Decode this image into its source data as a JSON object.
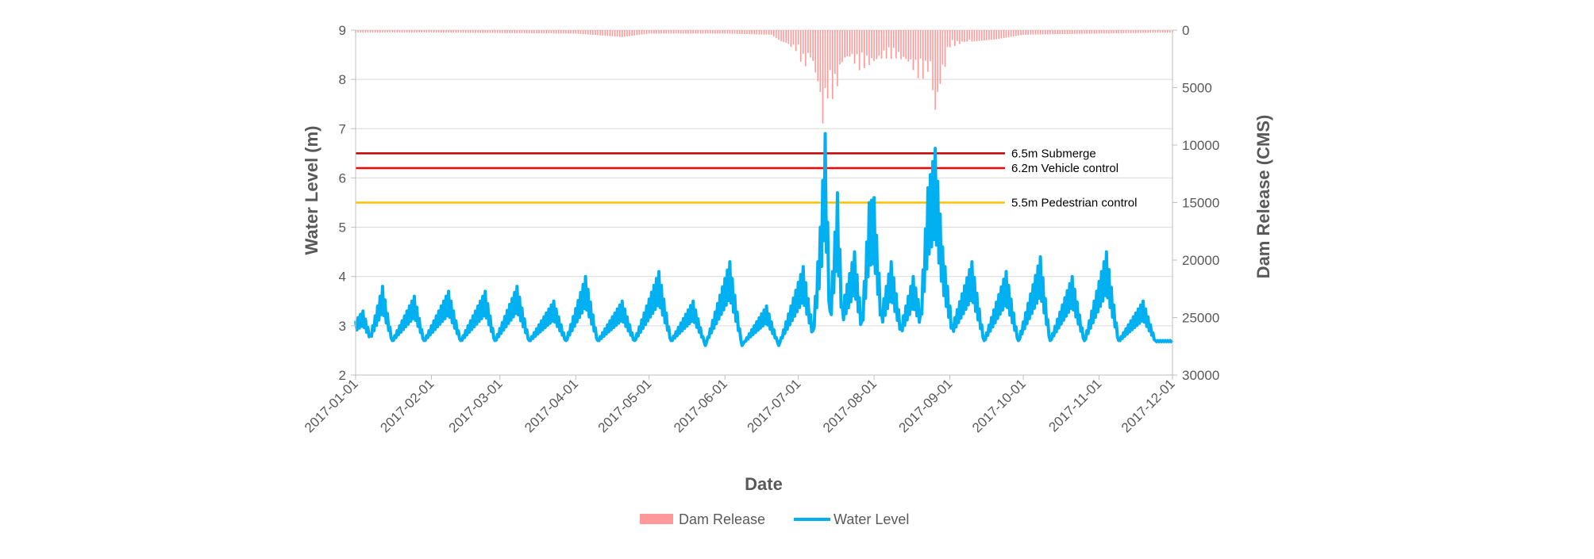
{
  "chart_data": {
    "type": "line",
    "xlabel": "Date",
    "ylabel_left": "Water Level (m)",
    "ylabel_right": "Dam Release (CMS)",
    "x_ticks": [
      "2017-01-01",
      "2017-02-01",
      "2017-03-01",
      "2017-04-01",
      "2017-05-01",
      "2017-06-01",
      "2017-07-01",
      "2017-08-01",
      "2017-09-01",
      "2017-10-01",
      "2017-11-01",
      "2017-12-01"
    ],
    "ylim_left": [
      2,
      9
    ],
    "yticks_left": [
      "2",
      "3",
      "4",
      "5",
      "6",
      "7",
      "8",
      "9"
    ],
    "ylim_right": [
      0,
      30000
    ],
    "right_axis_inverted": true,
    "yticks_right": [
      "0",
      "5000",
      "10000",
      "15000",
      "20000",
      "25000",
      "30000"
    ],
    "grid": "horizontal",
    "legend_position": "bottom",
    "legend": [
      "Dam Release",
      "Water Level"
    ],
    "thresholds": [
      {
        "label": "6.5m Submerge",
        "value": 6.5,
        "color": "#C00000"
      },
      {
        "label": "6.2m Vehicle control",
        "value": 6.2,
        "color": "#FF0000"
      },
      {
        "label": "5.5m Pedestrian control",
        "value": 5.5,
        "color": "#FFC000"
      }
    ],
    "series": [
      {
        "name": "Water Level",
        "kind": "line",
        "color": "#00B0F0",
        "date_range": [
          "2017-01-01",
          "2017-12-01"
        ],
        "points": [
          [
            "2017-01-01",
            3.1
          ],
          [
            "2017-01-04",
            3.3
          ],
          [
            "2017-01-07",
            2.8
          ],
          [
            "2017-01-12",
            3.8
          ],
          [
            "2017-01-16",
            2.7
          ],
          [
            "2017-01-25",
            3.6
          ],
          [
            "2017-01-29",
            2.7
          ],
          [
            "2017-02-08",
            3.7
          ],
          [
            "2017-02-13",
            2.7
          ],
          [
            "2017-02-23",
            3.7
          ],
          [
            "2017-02-27",
            2.7
          ],
          [
            "2017-03-08",
            3.8
          ],
          [
            "2017-03-13",
            2.7
          ],
          [
            "2017-03-23",
            3.5
          ],
          [
            "2017-03-28",
            2.7
          ],
          [
            "2017-04-05",
            4.0
          ],
          [
            "2017-04-10",
            2.7
          ],
          [
            "2017-04-20",
            3.5
          ],
          [
            "2017-04-25",
            2.7
          ],
          [
            "2017-05-05",
            4.1
          ],
          [
            "2017-05-10",
            2.7
          ],
          [
            "2017-05-19",
            3.5
          ],
          [
            "2017-05-24",
            2.6
          ],
          [
            "2017-06-03",
            4.3
          ],
          [
            "2017-06-08",
            2.6
          ],
          [
            "2017-06-18",
            3.4
          ],
          [
            "2017-06-23",
            2.6
          ],
          [
            "2017-07-03",
            4.2
          ],
          [
            "2017-07-07",
            2.9
          ],
          [
            "2017-07-10",
            5.0
          ],
          [
            "2017-07-12",
            6.9
          ],
          [
            "2017-07-14",
            3.3
          ],
          [
            "2017-07-17",
            5.7
          ],
          [
            "2017-07-19",
            3.4
          ],
          [
            "2017-07-24",
            4.5
          ],
          [
            "2017-07-27",
            3.1
          ],
          [
            "2017-07-30",
            5.5
          ],
          [
            "2017-08-01",
            5.6
          ],
          [
            "2017-08-04",
            3.3
          ],
          [
            "2017-08-08",
            4.3
          ],
          [
            "2017-08-12",
            3.0
          ],
          [
            "2017-08-17",
            4.0
          ],
          [
            "2017-08-20",
            3.3
          ],
          [
            "2017-08-23",
            5.8
          ],
          [
            "2017-08-26",
            6.6
          ],
          [
            "2017-08-29",
            4.6
          ],
          [
            "2017-09-02",
            3.0
          ],
          [
            "2017-09-10",
            4.3
          ],
          [
            "2017-09-15",
            2.7
          ],
          [
            "2017-09-24",
            4.1
          ],
          [
            "2017-09-29",
            2.7
          ],
          [
            "2017-10-08",
            4.4
          ],
          [
            "2017-10-12",
            2.7
          ],
          [
            "2017-10-21",
            4.0
          ],
          [
            "2017-10-26",
            2.7
          ],
          [
            "2017-11-04",
            4.5
          ],
          [
            "2017-11-09",
            2.7
          ],
          [
            "2017-11-19",
            3.5
          ],
          [
            "2017-11-24",
            2.7
          ],
          [
            "2017-12-01",
            2.7
          ]
        ]
      },
      {
        "name": "Dam Release",
        "kind": "bar",
        "axis": "right",
        "color": "#FF9999",
        "points": [
          [
            "2017-01-01",
            200
          ],
          [
            "2017-02-01",
            200
          ],
          [
            "2017-03-01",
            250
          ],
          [
            "2017-04-01",
            300
          ],
          [
            "2017-04-20",
            600
          ],
          [
            "2017-05-01",
            300
          ],
          [
            "2017-06-01",
            300
          ],
          [
            "2017-06-20",
            400
          ],
          [
            "2017-07-01",
            2000
          ],
          [
            "2017-07-03",
            3500
          ],
          [
            "2017-07-06",
            2500
          ],
          [
            "2017-07-09",
            5000
          ],
          [
            "2017-07-11",
            8500
          ],
          [
            "2017-07-13",
            6000
          ],
          [
            "2017-07-16",
            6000
          ],
          [
            "2017-07-19",
            3000
          ],
          [
            "2017-07-22",
            2500
          ],
          [
            "2017-07-26",
            3500
          ],
          [
            "2017-08-01",
            3000
          ],
          [
            "2017-08-05",
            2500
          ],
          [
            "2017-08-10",
            2500
          ],
          [
            "2017-08-15",
            3000
          ],
          [
            "2017-08-20",
            4500
          ],
          [
            "2017-08-24",
            3500
          ],
          [
            "2017-08-26",
            8000
          ],
          [
            "2017-08-28",
            5000
          ],
          [
            "2017-09-01",
            1500
          ],
          [
            "2017-09-10",
            1000
          ],
          [
            "2017-09-20",
            800
          ],
          [
            "2017-10-01",
            400
          ],
          [
            "2017-11-01",
            300
          ],
          [
            "2017-12-01",
            200
          ]
        ]
      }
    ]
  }
}
